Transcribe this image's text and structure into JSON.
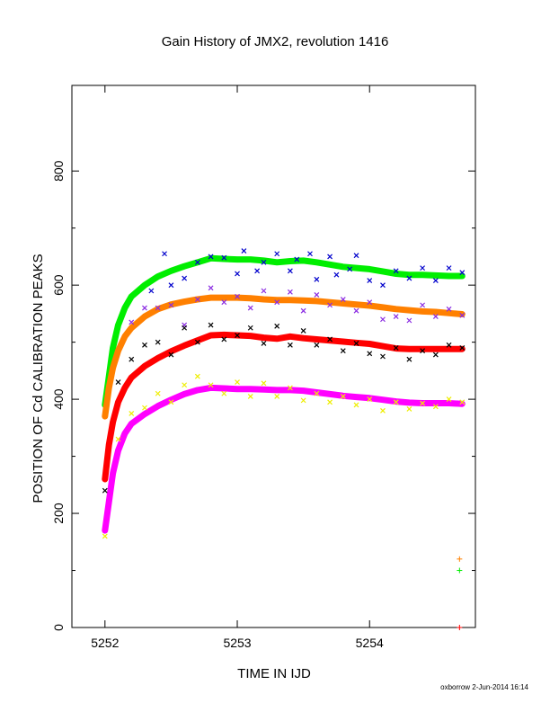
{
  "chart_data": {
    "type": "scatter",
    "title": "Gain History of JMX2, revolution 1416",
    "xlabel": "TIME IN IJD",
    "ylabel": "POSITION OF Cd CALIBRATION PEAKS",
    "xlim": [
      5251.75,
      5254.8
    ],
    "ylim": [
      0,
      950
    ],
    "x_ticks": [
      "5252",
      "5253",
      "5254"
    ],
    "y_ticks": [
      "0",
      "200",
      "400",
      "600",
      "800"
    ],
    "grid": false,
    "series": [
      {
        "color": "#00ee00",
        "style": "line",
        "points": [
          [
            5252.0,
            390
          ],
          [
            5252.03,
            440
          ],
          [
            5252.06,
            490
          ],
          [
            5252.1,
            530
          ],
          [
            5252.15,
            560
          ],
          [
            5252.2,
            580
          ],
          [
            5252.3,
            600
          ],
          [
            5252.4,
            615
          ],
          [
            5252.5,
            625
          ],
          [
            5252.6,
            633
          ],
          [
            5252.7,
            640
          ],
          [
            5252.8,
            647
          ],
          [
            5252.9,
            646
          ],
          [
            5253.0,
            645
          ],
          [
            5253.1,
            645
          ],
          [
            5253.2,
            643
          ],
          [
            5253.3,
            640
          ],
          [
            5253.4,
            642
          ],
          [
            5253.5,
            643
          ],
          [
            5253.6,
            640
          ],
          [
            5253.7,
            636
          ],
          [
            5253.8,
            632
          ],
          [
            5253.9,
            630
          ],
          [
            5254.0,
            628
          ],
          [
            5254.1,
            624
          ],
          [
            5254.2,
            620
          ],
          [
            5254.3,
            618
          ],
          [
            5254.4,
            618
          ],
          [
            5254.5,
            617
          ],
          [
            5254.6,
            616
          ],
          [
            5254.7,
            616
          ]
        ]
      },
      {
        "color": "#ff8000",
        "style": "line",
        "points": [
          [
            5252.0,
            370
          ],
          [
            5252.03,
            420
          ],
          [
            5252.06,
            455
          ],
          [
            5252.1,
            485
          ],
          [
            5252.15,
            510
          ],
          [
            5252.2,
            525
          ],
          [
            5252.3,
            545
          ],
          [
            5252.4,
            558
          ],
          [
            5252.5,
            566
          ],
          [
            5252.6,
            571
          ],
          [
            5252.7,
            575
          ],
          [
            5252.8,
            578
          ],
          [
            5252.9,
            578
          ],
          [
            5253.0,
            578
          ],
          [
            5253.1,
            577
          ],
          [
            5253.2,
            575
          ],
          [
            5253.3,
            574
          ],
          [
            5253.4,
            574
          ],
          [
            5253.5,
            573
          ],
          [
            5253.6,
            572
          ],
          [
            5253.7,
            570
          ],
          [
            5253.8,
            568
          ],
          [
            5253.9,
            566
          ],
          [
            5254.0,
            564
          ],
          [
            5254.1,
            561
          ],
          [
            5254.2,
            558
          ],
          [
            5254.3,
            556
          ],
          [
            5254.4,
            554
          ],
          [
            5254.5,
            553
          ],
          [
            5254.6,
            551
          ],
          [
            5254.7,
            549
          ]
        ]
      },
      {
        "color": "#ff0000",
        "style": "line",
        "points": [
          [
            5252.0,
            260
          ],
          [
            5252.03,
            320
          ],
          [
            5252.06,
            360
          ],
          [
            5252.1,
            395
          ],
          [
            5252.15,
            420
          ],
          [
            5252.2,
            438
          ],
          [
            5252.3,
            458
          ],
          [
            5252.4,
            472
          ],
          [
            5252.5,
            484
          ],
          [
            5252.6,
            494
          ],
          [
            5252.7,
            503
          ],
          [
            5252.8,
            512
          ],
          [
            5252.9,
            513
          ],
          [
            5253.0,
            512
          ],
          [
            5253.1,
            511
          ],
          [
            5253.2,
            508
          ],
          [
            5253.3,
            506
          ],
          [
            5253.4,
            510
          ],
          [
            5253.5,
            507
          ],
          [
            5253.6,
            505
          ],
          [
            5253.7,
            503
          ],
          [
            5253.8,
            501
          ],
          [
            5253.9,
            499
          ],
          [
            5254.0,
            497
          ],
          [
            5254.1,
            493
          ],
          [
            5254.2,
            489
          ],
          [
            5254.3,
            488
          ],
          [
            5254.4,
            488
          ],
          [
            5254.5,
            488
          ],
          [
            5254.6,
            488
          ],
          [
            5254.7,
            488
          ]
        ]
      },
      {
        "color": "#ff00ff",
        "style": "line",
        "points": [
          [
            5252.0,
            170
          ],
          [
            5252.03,
            220
          ],
          [
            5252.06,
            270
          ],
          [
            5252.1,
            310
          ],
          [
            5252.15,
            340
          ],
          [
            5252.2,
            357
          ],
          [
            5252.3,
            374
          ],
          [
            5252.4,
            388
          ],
          [
            5252.5,
            399
          ],
          [
            5252.6,
            409
          ],
          [
            5252.7,
            416
          ],
          [
            5252.8,
            420
          ],
          [
            5252.9,
            419
          ],
          [
            5253.0,
            418
          ],
          [
            5253.1,
            418
          ],
          [
            5253.2,
            417
          ],
          [
            5253.3,
            416
          ],
          [
            5253.4,
            416
          ],
          [
            5253.5,
            415
          ],
          [
            5253.6,
            412
          ],
          [
            5253.7,
            409
          ],
          [
            5253.8,
            406
          ],
          [
            5253.9,
            404
          ],
          [
            5254.0,
            402
          ],
          [
            5254.1,
            399
          ],
          [
            5254.2,
            396
          ],
          [
            5254.3,
            394
          ],
          [
            5254.4,
            393
          ],
          [
            5254.5,
            393
          ],
          [
            5254.6,
            393
          ],
          [
            5254.7,
            392
          ]
        ]
      },
      {
        "color": "#0000cc",
        "style": "scatter",
        "points": [
          [
            5252.35,
            590
          ],
          [
            5252.45,
            655
          ],
          [
            5252.5,
            600
          ],
          [
            5252.6,
            612
          ],
          [
            5252.7,
            640
          ],
          [
            5252.8,
            650
          ],
          [
            5252.9,
            648
          ],
          [
            5253.0,
            620
          ],
          [
            5253.05,
            660
          ],
          [
            5253.15,
            625
          ],
          [
            5253.2,
            640
          ],
          [
            5253.3,
            655
          ],
          [
            5253.4,
            625
          ],
          [
            5253.45,
            645
          ],
          [
            5253.55,
            655
          ],
          [
            5253.6,
            610
          ],
          [
            5253.7,
            650
          ],
          [
            5253.75,
            618
          ],
          [
            5253.85,
            628
          ],
          [
            5253.9,
            652
          ],
          [
            5254.0,
            608
          ],
          [
            5254.1,
            600
          ],
          [
            5254.2,
            625
          ],
          [
            5254.3,
            612
          ],
          [
            5254.4,
            630
          ],
          [
            5254.5,
            608
          ],
          [
            5254.6,
            630
          ],
          [
            5254.7,
            622
          ]
        ]
      },
      {
        "color": "#8a2be2",
        "style": "scatter",
        "points": [
          [
            5252.2,
            535
          ],
          [
            5252.3,
            560
          ],
          [
            5252.4,
            560
          ],
          [
            5252.5,
            565
          ],
          [
            5252.6,
            530
          ],
          [
            5252.7,
            575
          ],
          [
            5252.8,
            595
          ],
          [
            5252.9,
            570
          ],
          [
            5253.0,
            580
          ],
          [
            5253.1,
            560
          ],
          [
            5253.2,
            590
          ],
          [
            5253.3,
            570
          ],
          [
            5253.4,
            588
          ],
          [
            5253.5,
            555
          ],
          [
            5253.6,
            583
          ],
          [
            5253.7,
            565
          ],
          [
            5253.8,
            575
          ],
          [
            5253.9,
            555
          ],
          [
            5254.0,
            570
          ],
          [
            5254.1,
            540
          ],
          [
            5254.2,
            545
          ],
          [
            5254.3,
            538
          ],
          [
            5254.4,
            565
          ],
          [
            5254.5,
            545
          ],
          [
            5254.6,
            558
          ],
          [
            5254.7,
            547
          ]
        ]
      },
      {
        "color": "#000000",
        "style": "scatter",
        "points": [
          [
            5252.0,
            240
          ],
          [
            5252.1,
            430
          ],
          [
            5252.2,
            470
          ],
          [
            5252.3,
            495
          ],
          [
            5252.4,
            500
          ],
          [
            5252.5,
            478
          ],
          [
            5252.6,
            525
          ],
          [
            5252.7,
            500
          ],
          [
            5252.8,
            530
          ],
          [
            5252.9,
            505
          ],
          [
            5253.0,
            512
          ],
          [
            5253.1,
            525
          ],
          [
            5253.2,
            498
          ],
          [
            5253.3,
            528
          ],
          [
            5253.4,
            495
          ],
          [
            5253.5,
            520
          ],
          [
            5253.6,
            495
          ],
          [
            5253.7,
            505
          ],
          [
            5253.8,
            485
          ],
          [
            5253.9,
            498
          ],
          [
            5254.0,
            480
          ],
          [
            5254.1,
            475
          ],
          [
            5254.2,
            490
          ],
          [
            5254.3,
            470
          ],
          [
            5254.4,
            485
          ],
          [
            5254.5,
            478
          ],
          [
            5254.6,
            495
          ],
          [
            5254.7,
            490
          ]
        ]
      },
      {
        "color": "#eeee00",
        "style": "scatter",
        "points": [
          [
            5252.0,
            160
          ],
          [
            5252.1,
            330
          ],
          [
            5252.2,
            375
          ],
          [
            5252.3,
            385
          ],
          [
            5252.4,
            410
          ],
          [
            5252.5,
            395
          ],
          [
            5252.6,
            425
          ],
          [
            5252.7,
            440
          ],
          [
            5252.8,
            425
          ],
          [
            5252.9,
            410
          ],
          [
            5253.0,
            430
          ],
          [
            5253.1,
            405
          ],
          [
            5253.2,
            428
          ],
          [
            5253.3,
            405
          ],
          [
            5253.4,
            420
          ],
          [
            5253.5,
            398
          ],
          [
            5253.6,
            410
          ],
          [
            5253.7,
            395
          ],
          [
            5253.8,
            405
          ],
          [
            5253.9,
            390
          ],
          [
            5254.0,
            400
          ],
          [
            5254.1,
            380
          ],
          [
            5254.2,
            395
          ],
          [
            5254.3,
            383
          ],
          [
            5254.4,
            393
          ],
          [
            5254.5,
            387
          ],
          [
            5254.6,
            400
          ],
          [
            5254.7,
            395
          ]
        ]
      }
    ],
    "markers": [
      {
        "color": "#ff8000",
        "x": 5254.68,
        "y": 120
      },
      {
        "color": "#00ee00",
        "x": 5254.68,
        "y": 100
      },
      {
        "color": "#ff0000",
        "x": 5254.68,
        "y": 0
      }
    ]
  },
  "footer": "oxborrow  2-Jun-2014 16:14"
}
